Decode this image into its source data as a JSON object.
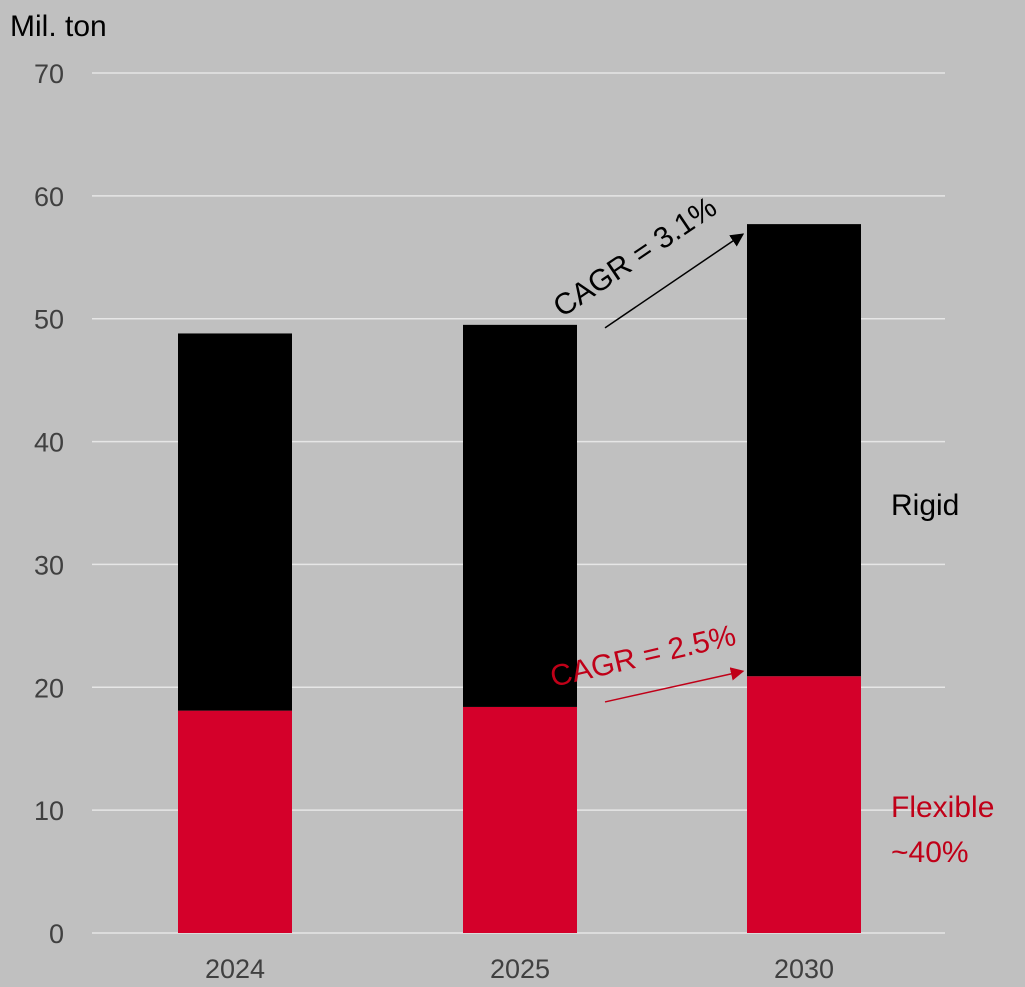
{
  "chart_data": {
    "type": "bar",
    "stacked": true,
    "unit_label": "Mil. ton",
    "categories": [
      "2024",
      "2025",
      "2030"
    ],
    "series": [
      {
        "name": "Flexible",
        "values": [
          18.1,
          18.4,
          20.9
        ],
        "color": "#d4002a"
      },
      {
        "name": "Rigid",
        "values": [
          30.7,
          31.1,
          36.8
        ],
        "color": "#000000"
      }
    ],
    "ylim": [
      0,
      70
    ],
    "yticks": [
      0,
      10,
      20,
      30,
      40,
      50,
      60,
      70
    ],
    "grid": true,
    "series_labels": {
      "rigid": "Rigid",
      "flexible_line1": "Flexible",
      "flexible_line2": "~40%"
    },
    "annotations": [
      {
        "text": "CAGR = 3.1%",
        "color": "#000000",
        "from_category": "2025",
        "to_category": "2030",
        "series": "total"
      },
      {
        "text": "CAGR = 2.5%",
        "color": "#c00018",
        "from_category": "2025",
        "to_category": "2030",
        "series": "Flexible"
      }
    ],
    "colors": {
      "background": "#c0c0c0",
      "gridline": "#e6e6e6",
      "tick_text": "#404040"
    }
  }
}
